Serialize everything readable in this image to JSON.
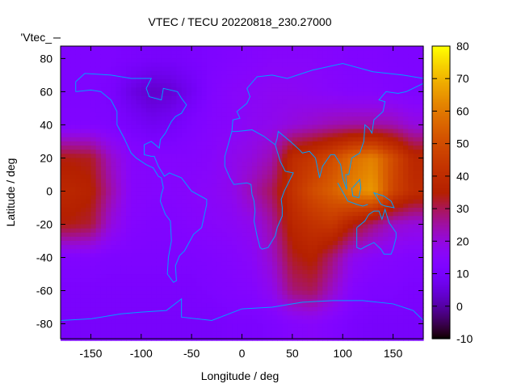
{
  "chart_data": {
    "type": "heatmap",
    "title": "VTEC / TECU 20220818_230.27000",
    "xlabel": "Longitude / deg",
    "ylabel": "Latitude / deg",
    "legend_label": "'Vtec_",
    "xlim": [
      -180,
      180
    ],
    "ylim": [
      -89,
      87.5
    ],
    "xticks": [
      -150,
      -100,
      -50,
      0,
      50,
      100,
      150
    ],
    "yticks": [
      -80,
      -60,
      -40,
      -20,
      0,
      20,
      40,
      60,
      80
    ],
    "cbrange": [
      -10,
      80
    ],
    "cbticks": [
      -10,
      0,
      10,
      20,
      30,
      40,
      50,
      60,
      70,
      80
    ],
    "colormap": "gnuplot rgbformulae 7,5,15",
    "grid_lon_centers": [
      -170,
      -150,
      -130,
      -110,
      -90,
      -70,
      -50,
      -30,
      -10,
      10,
      30,
      50,
      70,
      90,
      110,
      130,
      150,
      170
    ],
    "grid_lat_centers": [
      80,
      60,
      40,
      20,
      0,
      -20,
      -40,
      -60,
      -80
    ],
    "grid_values": [
      [
        12,
        12,
        12,
        11,
        10,
        10,
        11,
        12,
        13,
        14,
        15,
        15,
        15,
        14,
        13,
        13,
        12,
        12
      ],
      [
        12,
        12,
        11,
        6,
        3,
        4,
        8,
        13,
        15,
        16,
        17,
        17,
        16,
        15,
        14,
        14,
        13,
        12
      ],
      [
        13,
        13,
        12,
        10,
        8,
        9,
        12,
        14,
        15,
        17,
        18,
        20,
        22,
        24,
        25,
        25,
        24,
        20
      ],
      [
        34,
        33,
        22,
        15,
        14,
        14,
        14,
        15,
        18,
        20,
        24,
        40,
        44,
        50,
        58,
        62,
        50,
        38
      ],
      [
        38,
        36,
        25,
        15,
        14,
        14,
        15,
        16,
        18,
        24,
        30,
        42,
        50,
        55,
        62,
        66,
        48,
        40
      ],
      [
        34,
        32,
        20,
        14,
        13,
        13,
        14,
        15,
        16,
        18,
        25,
        38,
        42,
        44,
        35,
        28,
        22,
        20
      ],
      [
        13,
        13,
        12,
        12,
        12,
        12,
        12,
        13,
        14,
        16,
        22,
        33,
        36,
        28,
        18,
        15,
        14,
        13
      ],
      [
        11,
        11,
        11,
        11,
        11,
        11,
        11,
        12,
        13,
        14,
        18,
        28,
        30,
        22,
        14,
        12,
        12,
        11
      ],
      [
        10,
        10,
        10,
        10,
        10,
        10,
        10,
        10,
        11,
        11,
        12,
        14,
        15,
        13,
        11,
        10,
        10,
        10
      ]
    ]
  }
}
